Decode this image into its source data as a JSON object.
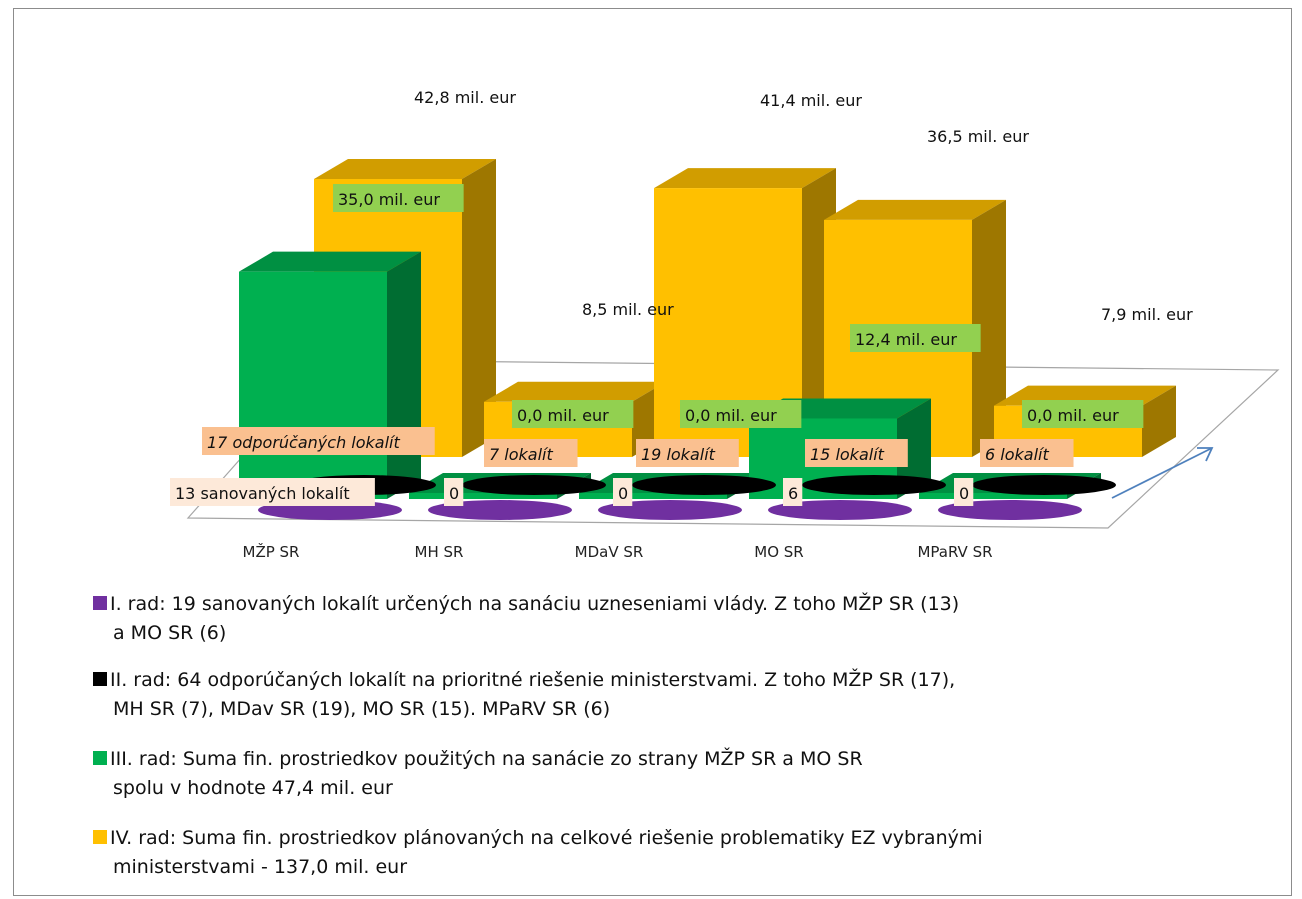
{
  "chart_data": {
    "type": "bar",
    "categories": [
      "MŽP SR",
      "MH SR",
      "MDaV SR",
      "MO SR",
      "MPaRV SR"
    ],
    "series": [
      {
        "name": "I. rad",
        "values": [
          13,
          0,
          0,
          6,
          0
        ],
        "color": "#7030a0",
        "labels": [
          "13 sanovaných lokalít",
          "0",
          "0",
          "6",
          "0"
        ]
      },
      {
        "name": "II. rad",
        "values": [
          17,
          7,
          19,
          15,
          6
        ],
        "color": "#000000",
        "labels": [
          "17  odporúčaných lokalít",
          "7 lokalít",
          "19 lokalít",
          "15 lokalít",
          "6 lokalít"
        ]
      },
      {
        "name": "III. rad",
        "values": [
          35.0,
          0.0,
          0.0,
          12.4,
          0.0
        ],
        "color": "#00b050",
        "labels": [
          "35,0 mil. eur",
          "0,0 mil. eur",
          "0,0 mil. eur",
          "12,4 mil. eur",
          "0,0 mil. eur"
        ]
      },
      {
        "name": "IV. rad",
        "values": [
          42.8,
          8.5,
          41.4,
          36.5,
          7.9
        ],
        "color": "#ffc000",
        "labels": [
          "42,8 mil. eur",
          "8,5 mil.  eur",
          "41,4 mil.  eur",
          "36,5 mil. eur",
          "7,9 mil. eur"
        ]
      }
    ],
    "legend": [
      {
        "color": "#7030a0",
        "line1": "I. rad: 19 sanovaných lokalít určených na sanáciu uzneseniami vlády. Z toho MŽP SR (13)",
        "line2": "a MO SR (6)"
      },
      {
        "color": "#000000",
        "line1": "II. rad: 64 odporúčaných lokalít na prioritné riešenie ministerstvami. Z toho MŽP SR (17),",
        "line2": "MH SR (7), MDav SR (19), MO SR (15). MPaRV SR (6)"
      },
      {
        "color": "#00b050",
        "line1": "III. rad: Suma fin. prostriedkov použitých na sanácie zo strany MŽP SR a MO SR",
        "line2": "spolu v hodnote 47,4 mil. eur"
      },
      {
        "color": "#ffc000",
        "line1": "IV. rad: Suma fin. prostriedkov plánovaných na celkové riešenie problematiky EZ vybranými",
        "line2": "ministerstvami - 137,0 mil. eur"
      }
    ],
    "legend_position": "bottom",
    "grid": false,
    "style": "3d-column"
  }
}
